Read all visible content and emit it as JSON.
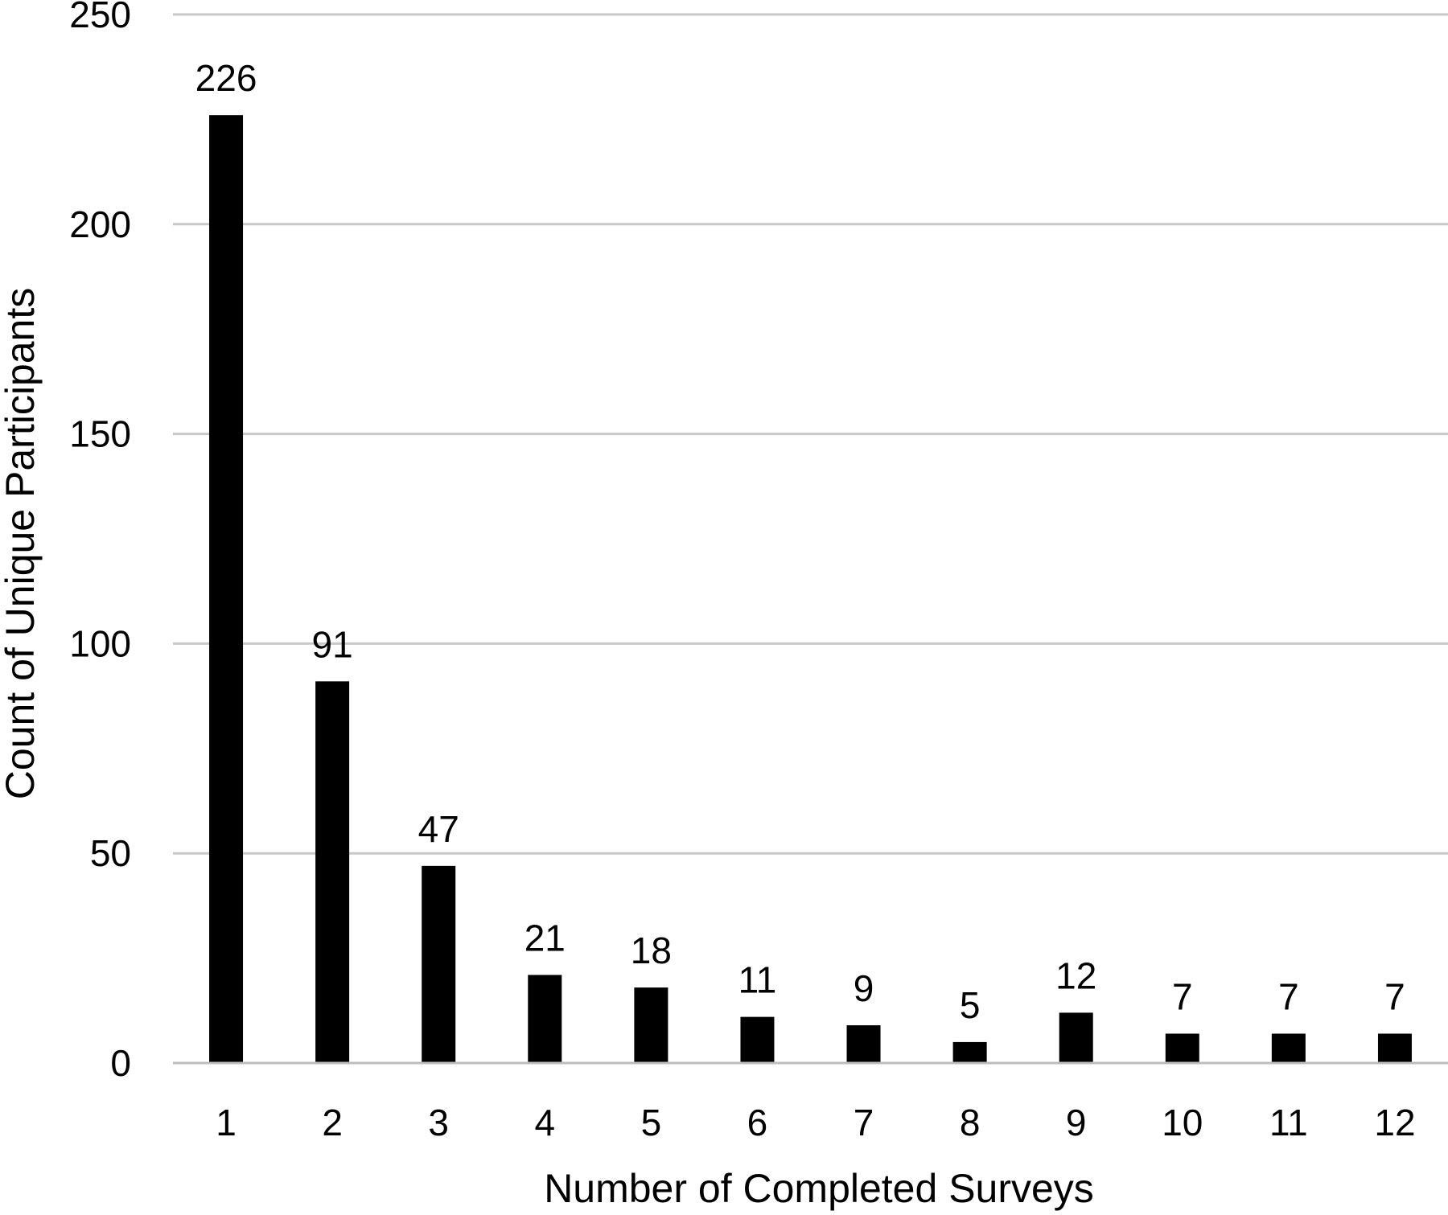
{
  "chart_data": {
    "type": "bar",
    "title": "",
    "xlabel": "Number of Completed Surveys",
    "ylabel": "Count of Unique Participants",
    "categories": [
      "1",
      "2",
      "3",
      "4",
      "5",
      "6",
      "7",
      "8",
      "9",
      "10",
      "11",
      "12"
    ],
    "values": [
      226,
      91,
      47,
      21,
      18,
      11,
      9,
      5,
      12,
      7,
      7,
      7
    ],
    "data_labels": [
      "226",
      "91",
      "47",
      "21",
      "18",
      "11",
      "9",
      "5",
      "12",
      "7",
      "7",
      "7"
    ],
    "yticks": [
      0,
      50,
      100,
      150,
      200,
      250
    ],
    "ytick_labels": [
      "0",
      "50",
      "100",
      "150",
      "200",
      "250"
    ],
    "ylim": [
      0,
      250
    ],
    "grid": "horizontal",
    "legend": "none",
    "colors": {
      "bar": "#000000",
      "grid": "#c8c8c8",
      "axis": "#bdbdbd",
      "text": "#000000"
    }
  }
}
